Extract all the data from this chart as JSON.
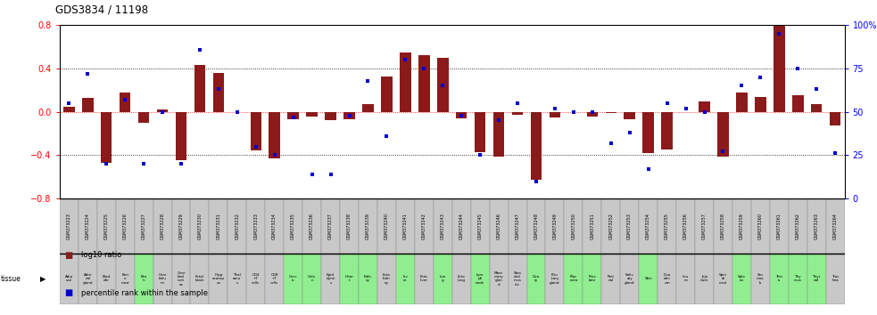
{
  "title": "GDS3834 / 11198",
  "gsm_labels": [
    "GSM373223",
    "GSM373224",
    "GSM373225",
    "GSM373226",
    "GSM373227",
    "GSM373228",
    "GSM373229",
    "GSM373230",
    "GSM373231",
    "GSM373232",
    "GSM373233",
    "GSM373234",
    "GSM373235",
    "GSM373236",
    "GSM373237",
    "GSM373238",
    "GSM373239",
    "GSM373240",
    "GSM373241",
    "GSM373242",
    "GSM373243",
    "GSM373244",
    "GSM373245",
    "GSM373246",
    "GSM373247",
    "GSM373248",
    "GSM373249",
    "GSM373250",
    "GSM373251",
    "GSM373252",
    "GSM373253",
    "GSM373254",
    "GSM373255",
    "GSM373256",
    "GSM373257",
    "GSM373258",
    "GSM373259",
    "GSM373260",
    "GSM373261",
    "GSM373262",
    "GSM373263",
    "GSM373264"
  ],
  "tissue_labels": [
    "Adip\nose",
    "Adre\nnal\ngland",
    "Blad\nder",
    "Bon\ne\nmarr",
    "Bra\nin",
    "Cere\nbelu\nm",
    "Cere\nbral\ncort\nex",
    "Fetal\nbrain",
    "Hipp\nocamp\nus",
    "Thal\namu\ns",
    "CD4\n+T\ncells",
    "CD8\n+T\ncells",
    "Cerv\nix",
    "Colo\nn",
    "Epid\ndymi\ns",
    "Hear\nt",
    "Kidn\ney",
    "Feta\nkidn\ney",
    "Liv\ner",
    "Feta\nliver",
    "Lun\ng",
    "Feta\nlung",
    "Lym\nph\nnode",
    "Mam\nmary\nglan\nd",
    "Sket\netal\nmus\ncle",
    "Ova\nry",
    "Pitu\nitary\ngland",
    "Plac\nenta",
    "Pros\ntate",
    "Reti\nnal",
    "Saliv\nary\ngland",
    "Skin",
    "Duo\nden\num",
    "Ileu\nm",
    "Jeju\nnum",
    "Spin\nal\ncord",
    "Sple\nen",
    "Sto\nmac\nls",
    "Test\nis",
    "Thy\nmus",
    "Thyr\noid",
    "Trac\nhea"
  ],
  "log10_ratio": [
    0.05,
    0.13,
    -0.47,
    0.18,
    -0.1,
    0.02,
    -0.45,
    0.43,
    0.36,
    0.0,
    -0.36,
    -0.43,
    -0.07,
    -0.04,
    -0.08,
    -0.07,
    0.07,
    0.33,
    0.55,
    0.52,
    0.5,
    -0.06,
    -0.37,
    -0.41,
    -0.03,
    -0.63,
    -0.05,
    0.0,
    -0.04,
    -0.01,
    -0.07,
    -0.38,
    -0.35,
    0.0,
    0.1,
    -0.41,
    0.18,
    0.14,
    0.85,
    0.15,
    0.07,
    -0.13
  ],
  "percentile": [
    55,
    72,
    20,
    57,
    20,
    50,
    20,
    86,
    63,
    50,
    30,
    25,
    47,
    14,
    14,
    48,
    68,
    36,
    80,
    75,
    65,
    48,
    25,
    45,
    55,
    10,
    52,
    50,
    50,
    32,
    38,
    17,
    55,
    52,
    50,
    27,
    65,
    70,
    95,
    75,
    63,
    26
  ],
  "bar_color": "#8B1A1A",
  "dot_color": "#0000CD",
  "ylim_left": [
    -0.8,
    0.8
  ],
  "ylim_right": [
    0,
    100
  ],
  "left_yticks": [
    -0.8,
    -0.4,
    0.0,
    0.4,
    0.8
  ],
  "right_yticks": [
    0,
    25,
    50,
    75,
    100
  ],
  "right_yticklabels": [
    "0",
    "25",
    "50",
    "75",
    "100%"
  ],
  "hlines": [
    -0.4,
    0.0,
    0.4
  ],
  "gsm_row_color": "#C8C8C8",
  "tissue_bg": [
    "#C8C8C8",
    "#C8C8C8",
    "#C8C8C8",
    "#C8C8C8",
    "#90EE90",
    "#C8C8C8",
    "#C8C8C8",
    "#C8C8C8",
    "#C8C8C8",
    "#C8C8C8",
    "#C8C8C8",
    "#C8C8C8",
    "#90EE90",
    "#90EE90",
    "#C8C8C8",
    "#90EE90",
    "#90EE90",
    "#C8C8C8",
    "#90EE90",
    "#C8C8C8",
    "#90EE90",
    "#C8C8C8",
    "#90EE90",
    "#C8C8C8",
    "#C8C8C8",
    "#90EE90",
    "#C8C8C8",
    "#90EE90",
    "#90EE90",
    "#C8C8C8",
    "#C8C8C8",
    "#90EE90",
    "#C8C8C8",
    "#C8C8C8",
    "#C8C8C8",
    "#C8C8C8",
    "#90EE90",
    "#C8C8C8",
    "#90EE90",
    "#90EE90",
    "#90EE90",
    "#C8C8C8"
  ],
  "legend_bar_label": "log10 ratio",
  "legend_dot_label": "percentile rank within the sample"
}
